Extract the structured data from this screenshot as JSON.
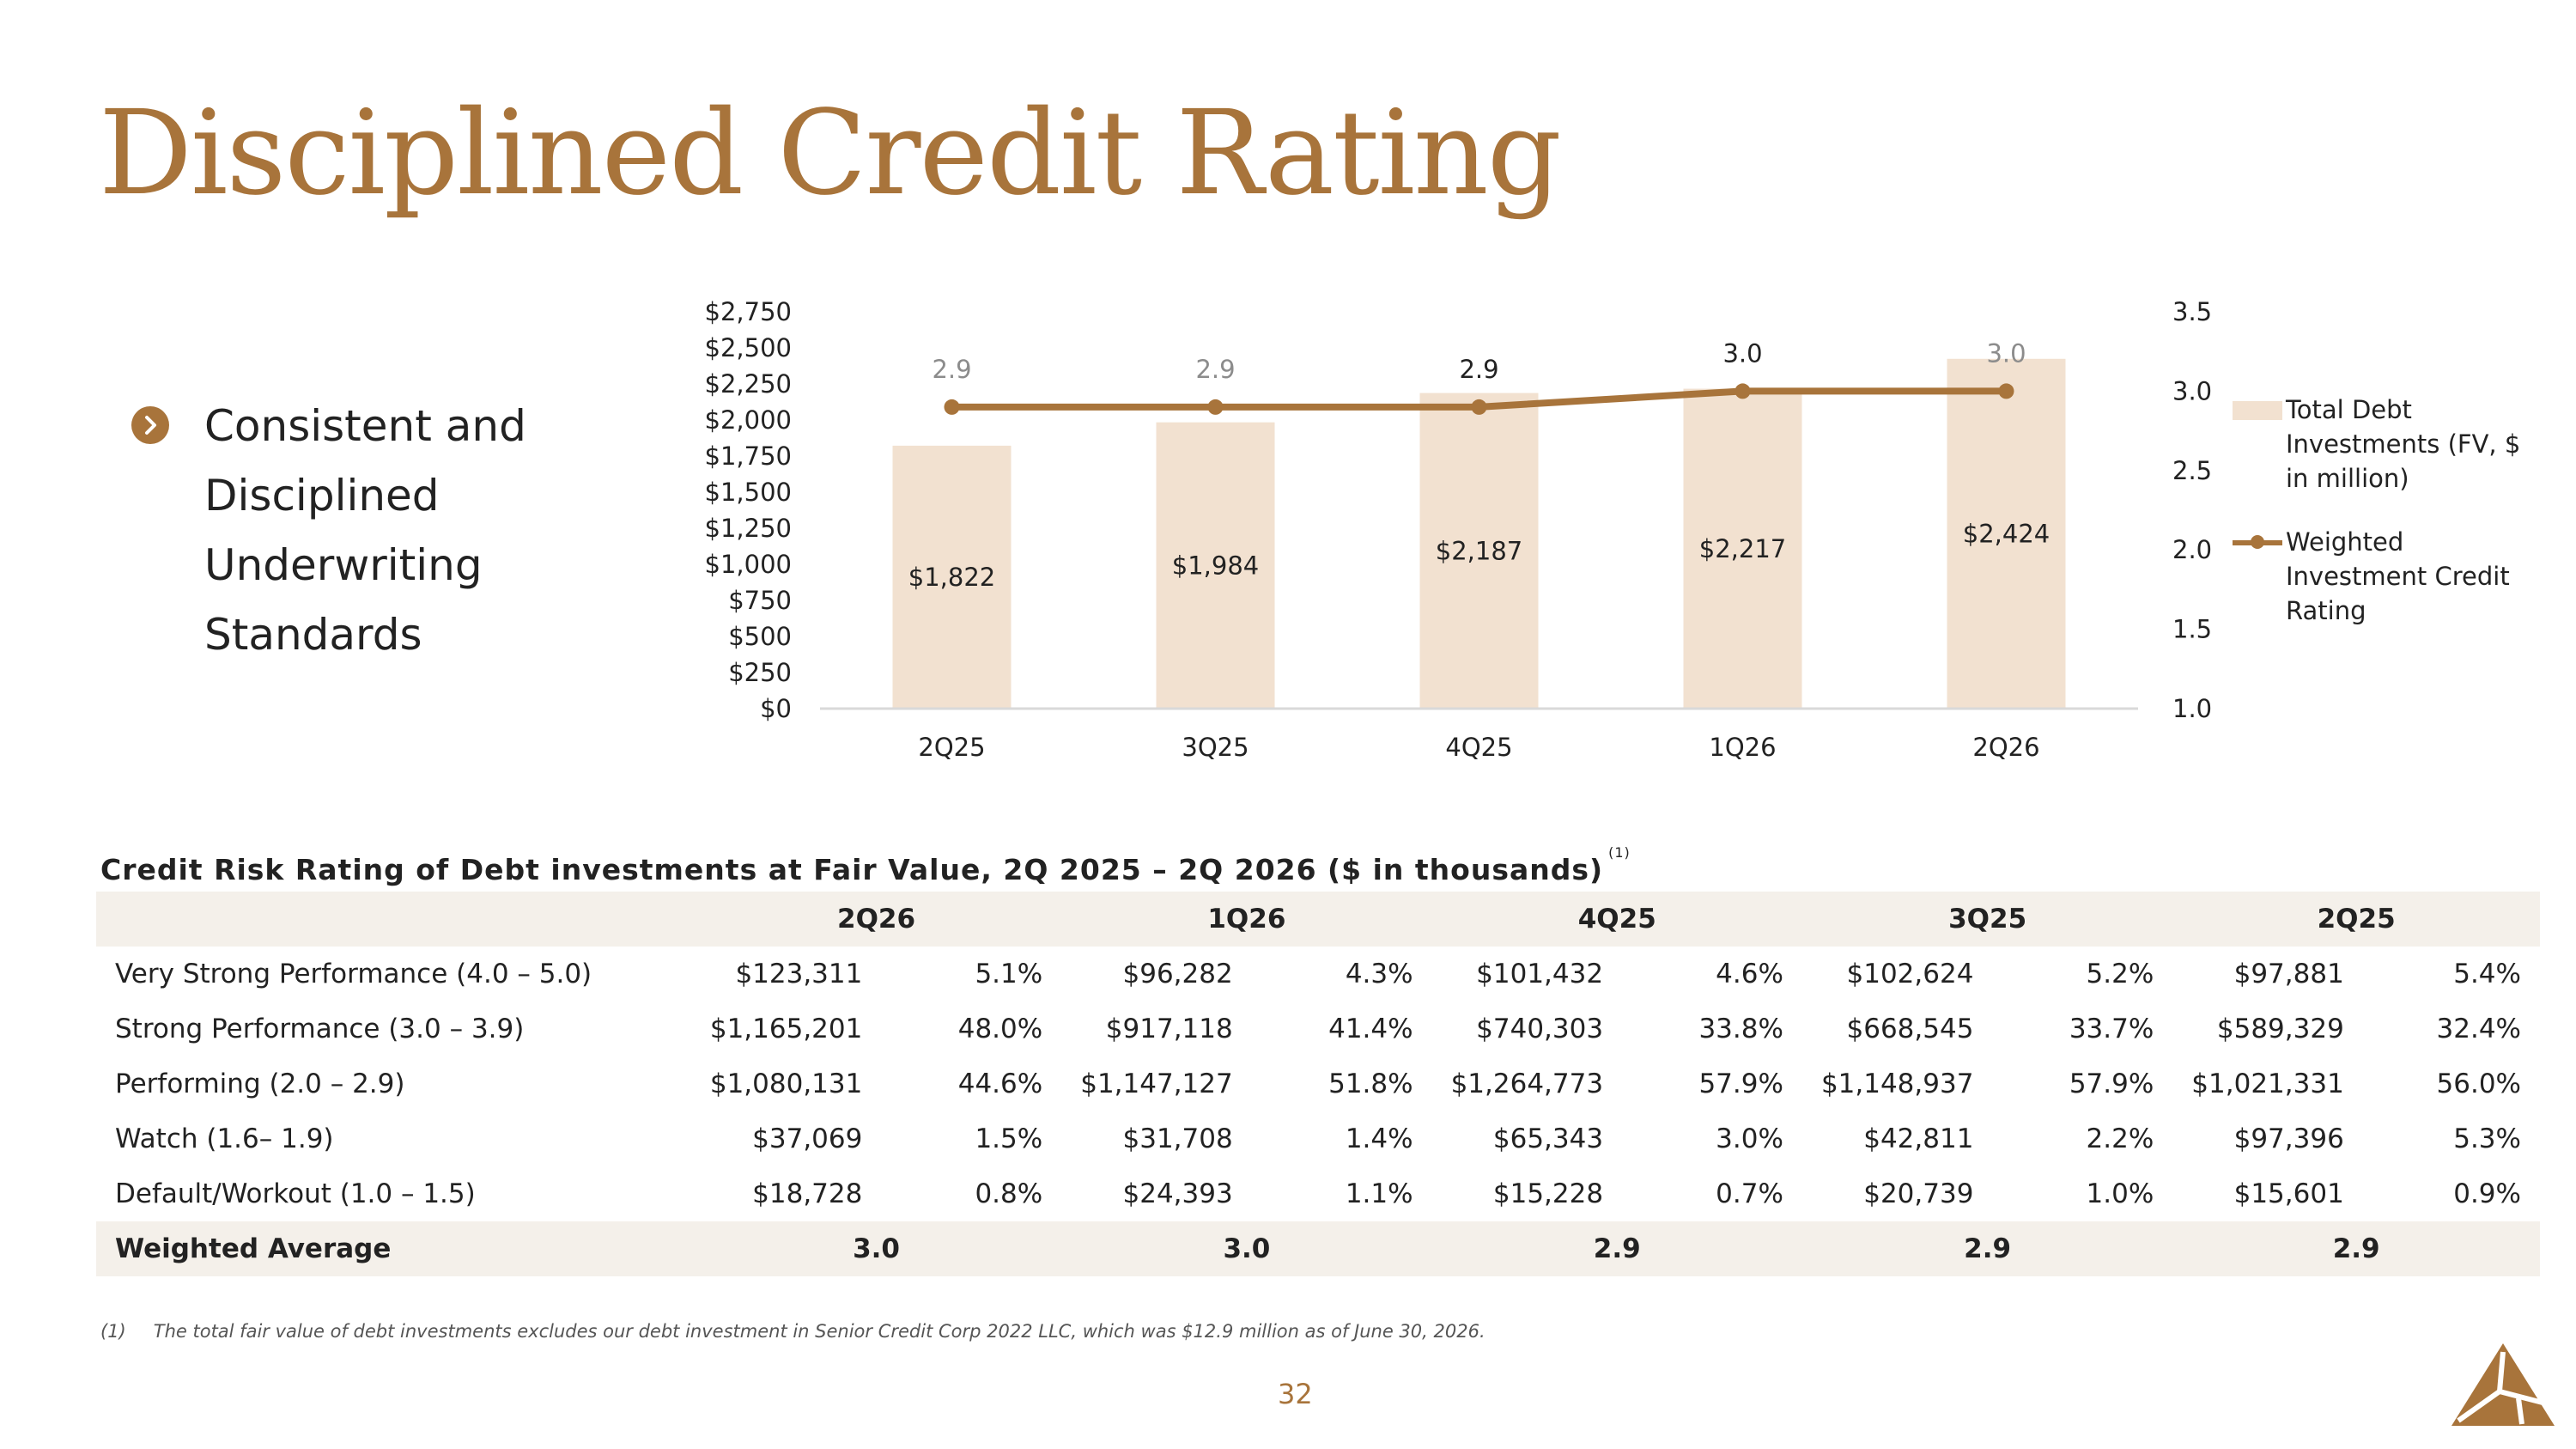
{
  "title": "Disciplined Credit Rating",
  "bullet": {
    "icon": "chevron-right-icon",
    "lines": [
      "Consistent and",
      "Disciplined",
      "Underwriting",
      "Standards"
    ]
  },
  "colors": {
    "accent": "#a8743b",
    "bar": "#f2e1d0",
    "row_shade": "#f4f0ea"
  },
  "chart_data": {
    "type": "bar",
    "categories": [
      "2Q25",
      "3Q25",
      "4Q25",
      "1Q26",
      "2Q26"
    ],
    "series": [
      {
        "name": "Total Debt Investments (FV, $ in million)",
        "type": "bar",
        "axis": "left",
        "values": [
          1822,
          1984,
          2187,
          2217,
          2424
        ],
        "labels": [
          "$1,822",
          "$1,984",
          "$2,187",
          "$2,217",
          "$2,424"
        ]
      },
      {
        "name": "Weighted Investment Credit Rating",
        "type": "line",
        "axis": "right",
        "values": [
          2.9,
          2.9,
          2.9,
          3.0,
          3.0
        ],
        "labels": [
          "2.9",
          "2.9",
          "2.9",
          "3.0",
          "3.0"
        ]
      }
    ],
    "y_left": {
      "range": [
        0,
        2750
      ],
      "ticks": [
        "$0",
        "$250",
        "$500",
        "$750",
        "$1,000",
        "$1,250",
        "$1,500",
        "$1,750",
        "$2,000",
        "$2,250",
        "$2,500",
        "$2,750"
      ]
    },
    "y_right": {
      "range": [
        1.0,
        3.5
      ],
      "ticks": [
        "1.0",
        "1.5",
        "2.0",
        "2.5",
        "3.0",
        "3.5"
      ]
    },
    "grid": false,
    "legend": "right"
  },
  "table": {
    "title": "Credit Risk Rating of Debt investments at Fair Value, 2Q 2025 – 2Q 2026 ($ in thousands)",
    "title_footnote": "(1)",
    "columns": [
      "2Q26",
      "1Q26",
      "4Q25",
      "3Q25",
      "2Q25"
    ],
    "rows": [
      {
        "label": "Very Strong Performance (4.0 – 5.0)",
        "cells": [
          "$123,311",
          "5.1%",
          "$96,282",
          "4.3%",
          "$101,432",
          "4.6%",
          "$102,624",
          "5.2%",
          "$97,881",
          "5.4%"
        ]
      },
      {
        "label": "Strong Performance (3.0 – 3.9)",
        "cells": [
          "$1,165,201",
          "48.0%",
          "$917,118",
          "41.4%",
          "$740,303",
          "33.8%",
          "$668,545",
          "33.7%",
          "$589,329",
          "32.4%"
        ]
      },
      {
        "label": "Performing (2.0 – 2.9)",
        "cells": [
          "$1,080,131",
          "44.6%",
          "$1,147,127",
          "51.8%",
          "$1,264,773",
          "57.9%",
          "$1,148,937",
          "57.9%",
          "$1,021,331",
          "56.0%"
        ]
      },
      {
        "label": "Watch (1.6– 1.9)",
        "cells": [
          "$37,069",
          "1.5%",
          "$31,708",
          "1.4%",
          "$65,343",
          "3.0%",
          "$42,811",
          "2.2%",
          "$97,396",
          "5.3%"
        ]
      },
      {
        "label": "Default/Workout (1.0 – 1.5)",
        "cells": [
          "$18,728",
          "0.8%",
          "$24,393",
          "1.1%",
          "$15,228",
          "0.7%",
          "$20,739",
          "1.0%",
          "$15,601",
          "0.9%"
        ]
      }
    ],
    "weighted_average": {
      "label": "Weighted Average",
      "values": [
        "3.0",
        "3.0",
        "2.9",
        "2.9",
        "2.9"
      ]
    }
  },
  "footnote": {
    "number": "(1)",
    "text": "The total fair value of debt investments excludes our debt investment in Senior Credit Corp 2022 LLC, which was $12.9 million as of June 30, 2026."
  },
  "page_number": "32",
  "logo": "triangle-logo-icon"
}
